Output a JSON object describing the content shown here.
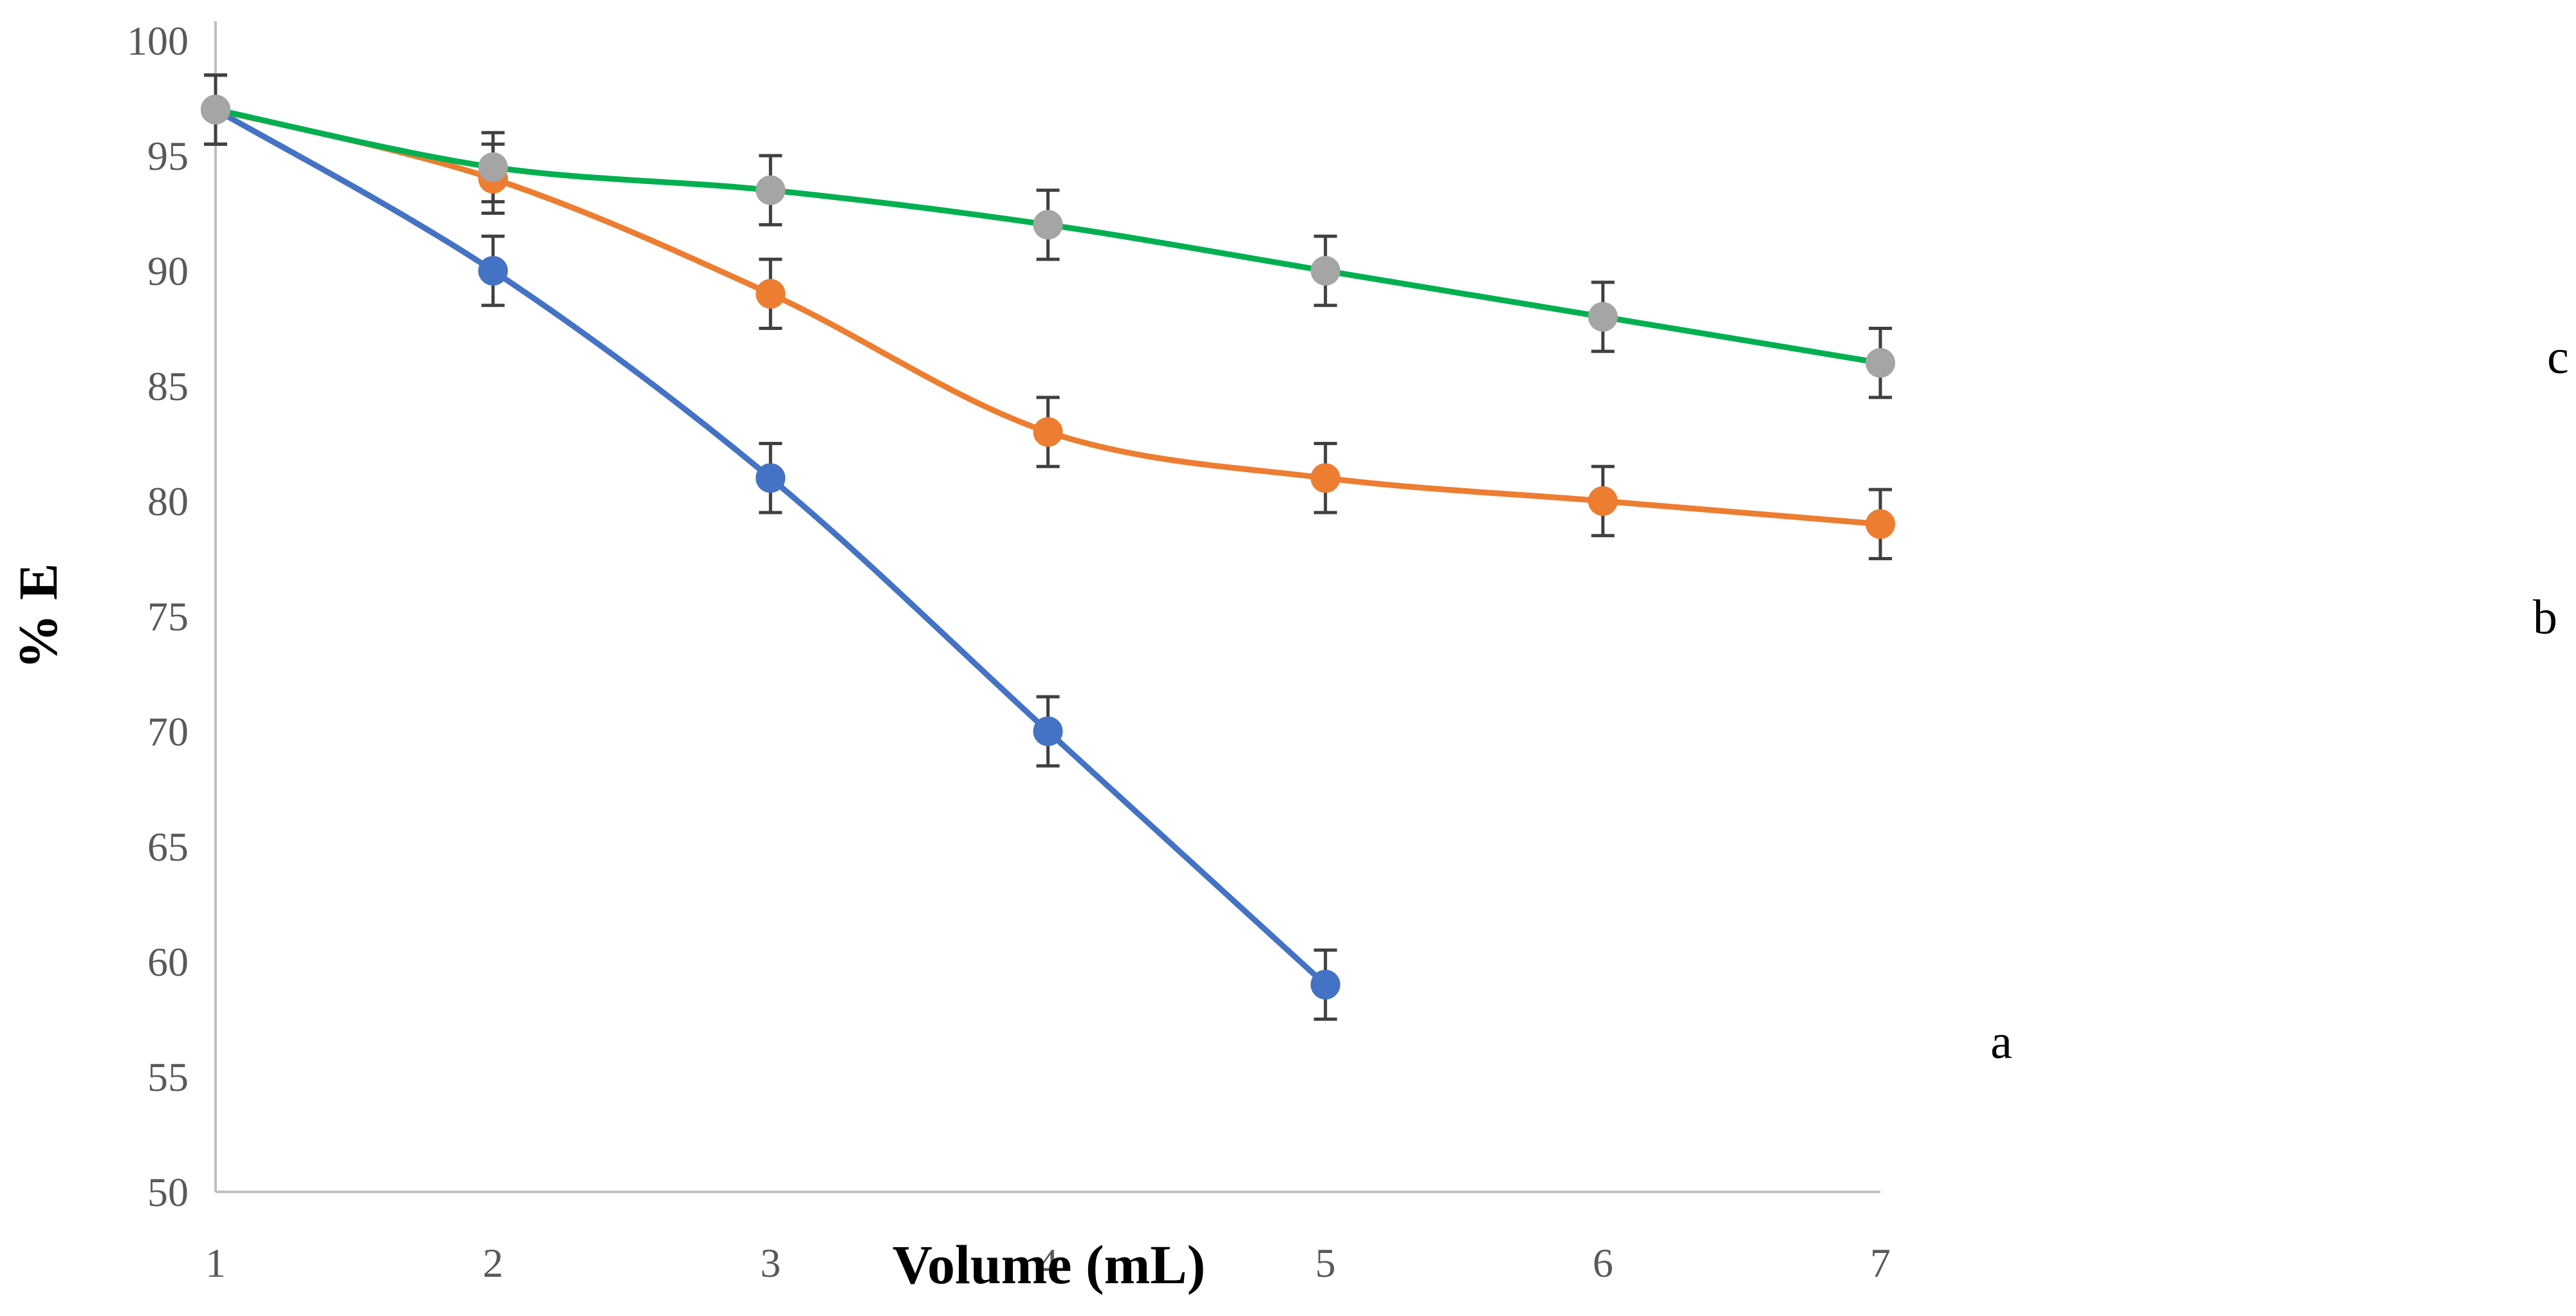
{
  "chart_data": {
    "type": "line",
    "title": "",
    "xlabel": "Volume (mL)",
    "ylabel": "% E",
    "xlim": [
      1,
      7
    ],
    "ylim": [
      50,
      100
    ],
    "x_ticks": [
      1,
      2,
      3,
      4,
      5,
      6,
      7
    ],
    "y_ticks": [
      50,
      55,
      60,
      65,
      70,
      75,
      80,
      85,
      90,
      95,
      100
    ],
    "grid": false,
    "legend": "none",
    "error_bar": 1.5,
    "series": [
      {
        "name": "a",
        "label": "a",
        "color": "#4472C4",
        "marker_color": "#4472C4",
        "x": [
          1,
          2,
          3,
          4,
          5
        ],
        "values": [
          97,
          90,
          81,
          70,
          59
        ]
      },
      {
        "name": "b",
        "label": "b",
        "color": "#ED7D31",
        "marker_color": "#ED7D31",
        "x": [
          1,
          2,
          3,
          4,
          5,
          6,
          7
        ],
        "values": [
          97,
          94,
          89,
          83,
          81,
          80,
          79
        ]
      },
      {
        "name": "c",
        "label": "c",
        "color": "#00B050",
        "marker_color": "#A5A5A5",
        "x": [
          1,
          2,
          3,
          4,
          5,
          6,
          7
        ],
        "values": [
          97,
          94.5,
          93.5,
          92,
          90,
          88,
          86
        ]
      }
    ]
  }
}
